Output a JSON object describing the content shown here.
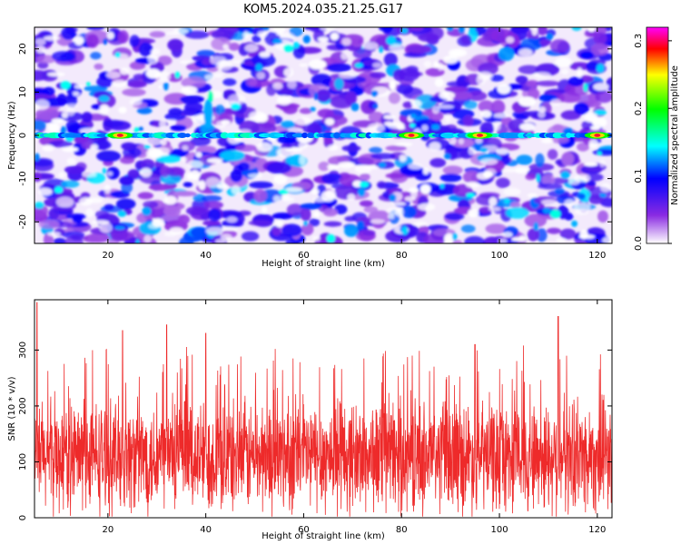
{
  "title": "KOM5.2024.035.21.25.G17",
  "chart_data": [
    {
      "type": "heatmap",
      "xlabel": "Height of straight line (km)",
      "ylabel": "Frequency (Hz)",
      "xlim": [
        5,
        123
      ],
      "ylim": [
        -25,
        25
      ],
      "xticks": [
        20,
        40,
        60,
        80,
        100,
        120
      ],
      "yticks": [
        -20,
        -10,
        0,
        10,
        20
      ],
      "colorbar": {
        "label": "Normalized spectral amplitude",
        "range": [
          0.0,
          0.32
        ],
        "ticks": [
          "0.0",
          "0.1",
          "0.2",
          "0.3"
        ],
        "colors": [
          "#ffffff",
          "#8a2be2",
          "#0000ff",
          "#00ffff",
          "#00ff00",
          "#ffff00",
          "#ff0000",
          "#ff00ff"
        ]
      },
      "features": {
        "line_frequency_hz": 0,
        "hot_spots_km": [
          22.5,
          82,
          96,
          120
        ]
      }
    },
    {
      "type": "line",
      "xlabel": "Height of straight line (km)",
      "ylabel": "SNR (10 * v/v)",
      "xlim": [
        5,
        123
      ],
      "ylim": [
        0,
        390
      ],
      "xticks": [
        20,
        40,
        60,
        80,
        100,
        120
      ],
      "yticks": [
        0,
        100,
        200,
        300
      ],
      "color": "#ee2a2a",
      "mean": 110,
      "spread": 100,
      "peaks": [
        [
          5.5,
          385
        ],
        [
          32,
          345
        ],
        [
          40,
          330
        ],
        [
          112,
          360
        ],
        [
          23,
          335
        ],
        [
          95,
          310
        ]
      ]
    }
  ]
}
